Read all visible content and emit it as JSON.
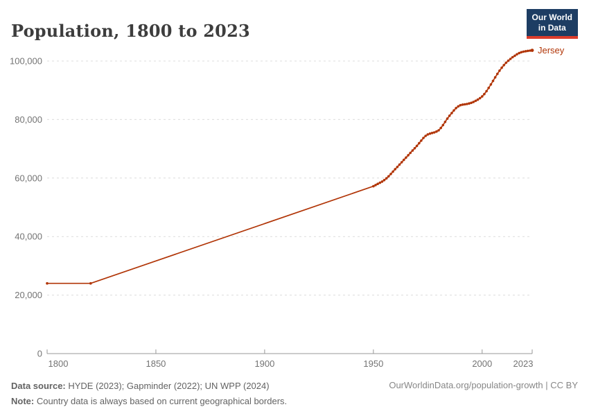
{
  "logo": {
    "line1": "Our World",
    "line2": "in Data",
    "bg_color": "#1d3d63",
    "accent_color": "#dc3c2b"
  },
  "footer": {
    "source_label": "Data source:",
    "source_text": " HYDE (2023); Gapminder (2022); UN WPP (2024)",
    "note_label": "Note:",
    "note_text": " Country data is always based on current geographical borders.",
    "right_text": "OurWorldinData.org/population-growth | CC BY"
  },
  "chart_data": {
    "type": "line",
    "title": "Population, 1800 to 2023",
    "xlabel": "",
    "ylabel": "",
    "xlim": [
      1800,
      2023
    ],
    "ylim": [
      0,
      105000
    ],
    "x_ticks": [
      1800,
      1850,
      1900,
      1950,
      2000,
      2023
    ],
    "y_ticks": [
      0,
      20000,
      40000,
      60000,
      80000,
      100000
    ],
    "grid": "horizontal-dashed",
    "legend_position": "series label at right end of line",
    "series": [
      {
        "name": "Jersey",
        "color": "#b13507",
        "points": [
          [
            1800,
            24000
          ],
          [
            1820,
            24000
          ],
          [
            1950,
            57200
          ],
          [
            1951,
            57600
          ],
          [
            1952,
            58000
          ],
          [
            1953,
            58400
          ],
          [
            1954,
            58800
          ],
          [
            1955,
            59300
          ],
          [
            1956,
            59900
          ],
          [
            1957,
            60600
          ],
          [
            1958,
            61400
          ],
          [
            1959,
            62200
          ],
          [
            1960,
            63000
          ],
          [
            1961,
            63800
          ],
          [
            1962,
            64600
          ],
          [
            1963,
            65400
          ],
          [
            1964,
            66200
          ],
          [
            1965,
            67000
          ],
          [
            1966,
            67800
          ],
          [
            1967,
            68600
          ],
          [
            1968,
            69400
          ],
          [
            1969,
            70200
          ],
          [
            1970,
            71000
          ],
          [
            1971,
            71900
          ],
          [
            1972,
            72800
          ],
          [
            1973,
            73700
          ],
          [
            1974,
            74400
          ],
          [
            1975,
            74900
          ],
          [
            1976,
            75200
          ],
          [
            1977,
            75400
          ],
          [
            1978,
            75600
          ],
          [
            1979,
            75900
          ],
          [
            1980,
            76300
          ],
          [
            1981,
            77100
          ],
          [
            1982,
            78100
          ],
          [
            1983,
            79200
          ],
          [
            1984,
            80300
          ],
          [
            1985,
            81300
          ],
          [
            1986,
            82200
          ],
          [
            1987,
            83100
          ],
          [
            1988,
            83900
          ],
          [
            1989,
            84500
          ],
          [
            1990,
            84900
          ],
          [
            1991,
            85100
          ],
          [
            1992,
            85200
          ],
          [
            1993,
            85300
          ],
          [
            1994,
            85500
          ],
          [
            1995,
            85700
          ],
          [
            1996,
            86000
          ],
          [
            1997,
            86400
          ],
          [
            1998,
            86800
          ],
          [
            1999,
            87300
          ],
          [
            2000,
            87900
          ],
          [
            2001,
            88700
          ],
          [
            2002,
            89700
          ],
          [
            2003,
            90800
          ],
          [
            2004,
            92000
          ],
          [
            2005,
            93200
          ],
          [
            2006,
            94400
          ],
          [
            2007,
            95600
          ],
          [
            2008,
            96700
          ],
          [
            2009,
            97700
          ],
          [
            2010,
            98600
          ],
          [
            2011,
            99400
          ],
          [
            2012,
            100100
          ],
          [
            2013,
            100700
          ],
          [
            2014,
            101300
          ],
          [
            2015,
            101800
          ],
          [
            2016,
            102300
          ],
          [
            2017,
            102700
          ],
          [
            2018,
            103000
          ],
          [
            2019,
            103200
          ],
          [
            2020,
            103350
          ],
          [
            2021,
            103450
          ],
          [
            2022,
            103550
          ],
          [
            2023,
            103650
          ]
        ]
      }
    ]
  }
}
